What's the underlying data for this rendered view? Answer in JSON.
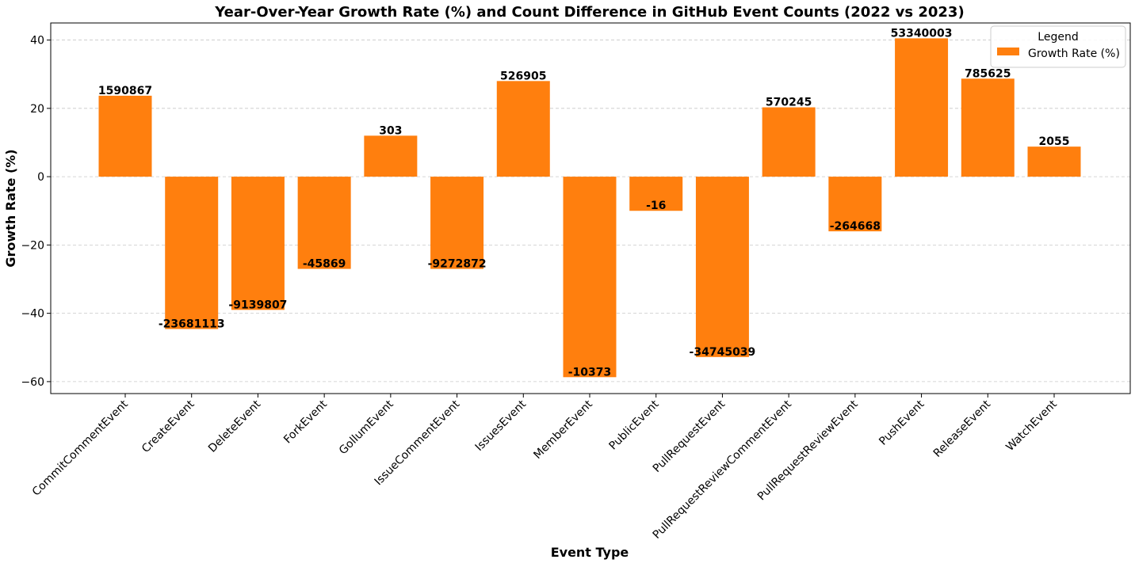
{
  "chart_data": {
    "type": "bar",
    "title": "Year-Over-Year Growth Rate (%) and Count Difference in GitHub Event Counts (2022 vs 2023)",
    "xlabel": "Event Type",
    "ylabel": "Growth Rate (%)",
    "ylim": [
      -63.5,
      45
    ],
    "yticks": [
      -60,
      -40,
      -20,
      0,
      20,
      40
    ],
    "grid": "y",
    "legend": {
      "title": "Legend",
      "placement": "top-right",
      "entries": [
        "Growth Rate (%)"
      ]
    },
    "bar_color": "#ff7f0e",
    "categories": [
      "CommitCommentEvent",
      "CreateEvent",
      "DeleteEvent",
      "ForkEvent",
      "GollumEvent",
      "IssueCommentEvent",
      "IssuesEvent",
      "MemberEvent",
      "PublicEvent",
      "PullRequestEvent",
      "PullRequestReviewCommentEvent",
      "PullRequestReviewEvent",
      "PushEvent",
      "ReleaseEvent",
      "WatchEvent"
    ],
    "series": [
      {
        "name": "Growth Rate (%)",
        "values": [
          23.7,
          -44.6,
          -39.0,
          -27.0,
          12.0,
          -27.0,
          28.0,
          -58.7,
          -10.0,
          -52.8,
          20.3,
          -16.0,
          40.5,
          28.7,
          8.8
        ]
      }
    ],
    "data_labels": [
      "1590867",
      "-23681113",
      "-9139807",
      "-45869",
      "303",
      "-9272872",
      "526905",
      "-10373",
      "-16",
      "-34745039",
      "570245",
      "-264668",
      "53340003",
      "785625",
      "2055"
    ]
  }
}
